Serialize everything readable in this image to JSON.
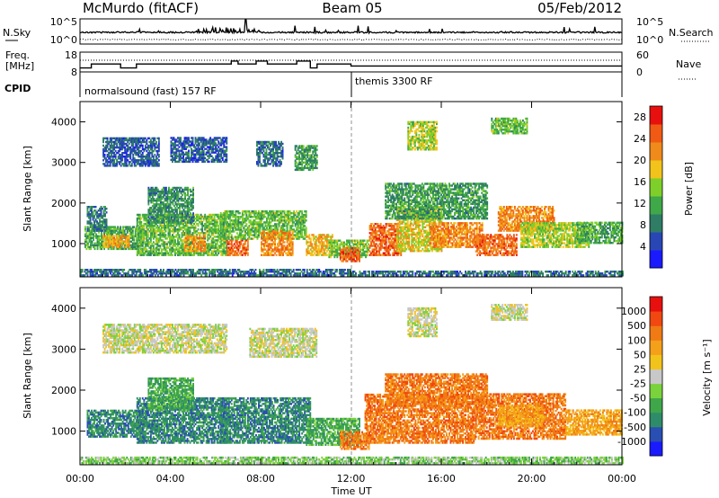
{
  "header": {
    "station": "McMurdo (fitACF)",
    "beam": "Beam 05",
    "date": "05/Feb/2012"
  },
  "top_panels": {
    "nsky_label": "N.Sky",
    "nsky_ticks": [
      "10^5",
      "10^0"
    ],
    "nsearch_label": "N.Search",
    "nsearch_ticks": [
      "10^5",
      "10^0"
    ],
    "freq_label": [
      "Freq.",
      "[MHz]"
    ],
    "freq_ticks": [
      "18",
      "8"
    ],
    "nave_label": "Nave",
    "nave_ticks": [
      "60",
      "0"
    ],
    "cpid_label": "CPID",
    "cpid_segments": [
      {
        "label": "normalsound (fast) 157 RF",
        "start_hour": 0
      },
      {
        "label": "themis 3300 RF",
        "start_hour": 12
      }
    ],
    "freq_profile": [
      [
        0,
        10
      ],
      [
        0.5,
        10
      ],
      [
        0.5,
        12
      ],
      [
        1.8,
        12
      ],
      [
        1.8,
        10
      ],
      [
        2.5,
        10
      ],
      [
        2.5,
        12
      ],
      [
        6.7,
        12
      ],
      [
        6.7,
        13.5
      ],
      [
        7,
        13.5
      ],
      [
        7,
        12
      ],
      [
        7.8,
        12
      ],
      [
        7.8,
        13.5
      ],
      [
        8.3,
        13.5
      ],
      [
        8.3,
        12
      ],
      [
        9.6,
        12
      ],
      [
        9.6,
        13.5
      ],
      [
        10.2,
        13.5
      ],
      [
        10.2,
        10
      ],
      [
        10.5,
        10
      ],
      [
        10.5,
        12
      ],
      [
        12,
        12
      ],
      [
        12,
        11
      ],
      [
        24,
        11
      ]
    ]
  },
  "chart_data": [
    {
      "type": "heatmap",
      "title": "",
      "quantity": "Power",
      "colorbar_label": "Power [dB]",
      "colorbar_ticks": [
        4,
        8,
        12,
        16,
        20,
        24,
        28
      ],
      "colorbar_range": [
        0,
        30
      ],
      "colorbar_colors": [
        "#1a1aff",
        "#2847b4",
        "#2e7d64",
        "#3fa848",
        "#7fcf2a",
        "#f2c31a",
        "#f08a1a",
        "#f05a14",
        "#e8100f"
      ],
      "xlabel": "",
      "ylabel": "Slant Range [km]",
      "xlim": [
        0,
        24
      ],
      "ylim": [
        180,
        4500
      ],
      "y_ticks": [
        1000,
        2000,
        3000,
        4000
      ],
      "x_ticks": [
        "00:00",
        "04:00",
        "08:00",
        "12:00",
        "16:00",
        "20:00",
        "00:00"
      ],
      "regions": [
        {
          "t0": 0.0,
          "t1": 12.0,
          "r0": 200,
          "r1": 350,
          "value": 6
        },
        {
          "t0": 12.0,
          "t1": 24.0,
          "r0": 200,
          "r1": 330,
          "value": 6
        },
        {
          "t0": 0.2,
          "t1": 2.8,
          "r0": 850,
          "r1": 1400,
          "value": 11
        },
        {
          "t0": 0.3,
          "t1": 1.2,
          "r0": 1300,
          "r1": 1900,
          "value": 7
        },
        {
          "t0": 1.0,
          "t1": 2.2,
          "r0": 900,
          "r1": 1200,
          "value": 21
        },
        {
          "t0": 2.5,
          "t1": 6.5,
          "r0": 700,
          "r1": 1700,
          "value": 13
        },
        {
          "t0": 3.0,
          "t1": 5.0,
          "r0": 1500,
          "r1": 2400,
          "value": 9
        },
        {
          "t0": 4.6,
          "t1": 5.5,
          "r0": 800,
          "r1": 1200,
          "value": 22
        },
        {
          "t0": 6.5,
          "t1": 7.4,
          "r0": 700,
          "r1": 1100,
          "value": 25
        },
        {
          "t0": 6.2,
          "t1": 10.0,
          "r0": 1100,
          "r1": 1800,
          "value": 13
        },
        {
          "t0": 8.0,
          "t1": 9.4,
          "r0": 700,
          "r1": 1300,
          "value": 23
        },
        {
          "t0": 10.0,
          "t1": 11.2,
          "r0": 700,
          "r1": 1200,
          "value": 20
        },
        {
          "t0": 11.0,
          "t1": 12.8,
          "r0": 650,
          "r1": 1100,
          "value": 14
        },
        {
          "t0": 11.5,
          "t1": 12.4,
          "r0": 550,
          "r1": 900,
          "value": 26
        },
        {
          "t0": 12.8,
          "t1": 14.2,
          "r0": 700,
          "r1": 1500,
          "value": 25
        },
        {
          "t0": 14.0,
          "t1": 16.0,
          "r0": 800,
          "r1": 1900,
          "value": 18
        },
        {
          "t0": 15.5,
          "t1": 17.8,
          "r0": 900,
          "r1": 1500,
          "value": 23
        },
        {
          "t0": 17.5,
          "t1": 19.3,
          "r0": 700,
          "r1": 1200,
          "value": 25
        },
        {
          "t0": 18.5,
          "t1": 21.0,
          "r0": 1300,
          "r1": 1900,
          "value": 23
        },
        {
          "t0": 19.5,
          "t1": 22.5,
          "r0": 900,
          "r1": 1500,
          "value": 16
        },
        {
          "t0": 22.0,
          "t1": 24.0,
          "r0": 1000,
          "r1": 1500,
          "value": 11
        },
        {
          "t0": 13.5,
          "t1": 18.0,
          "r0": 1600,
          "r1": 2500,
          "value": 10
        },
        {
          "t0": 1.0,
          "t1": 3.5,
          "r0": 2900,
          "r1": 3600,
          "value": 5
        },
        {
          "t0": 4.0,
          "t1": 6.5,
          "r0": 3000,
          "r1": 3600,
          "value": 5
        },
        {
          "t0": 7.8,
          "t1": 9.0,
          "r0": 2900,
          "r1": 3500,
          "value": 6
        },
        {
          "t0": 9.5,
          "t1": 10.5,
          "r0": 2800,
          "r1": 3400,
          "value": 10
        },
        {
          "t0": 14.5,
          "t1": 15.8,
          "r0": 3300,
          "r1": 4000,
          "value": 16
        },
        {
          "t0": 18.2,
          "t1": 19.8,
          "r0": 3700,
          "r1": 4100,
          "value": 13
        }
      ]
    },
    {
      "type": "heatmap",
      "title": "",
      "quantity": "Velocity",
      "colorbar_label": "Velocity [m s⁻¹]",
      "colorbar_ticks": [
        "1000",
        "500",
        "100",
        "50",
        "25",
        "-25",
        "-50",
        "-100",
        "-500",
        "-1000"
      ],
      "colorbar_colors": [
        "#1a1aff",
        "#2a4fb2",
        "#2e8c6a",
        "#3fa64a",
        "#7ad23c",
        "#c8c8c8",
        "#f2c31a",
        "#f5a01a",
        "#f07a14",
        "#f04810",
        "#e8100f"
      ],
      "xlabel": "Time UT",
      "ylabel": "Slant Range [km]",
      "xlim": [
        0,
        24
      ],
      "ylim": [
        180,
        4500
      ],
      "y_ticks": [
        1000,
        2000,
        3000,
        4000
      ],
      "x_ticks": [
        "00:00",
        "04:00",
        "08:00",
        "12:00",
        "16:00",
        "20:00",
        "00:00"
      ],
      "regions": [
        {
          "t0": 0.0,
          "t1": 24.0,
          "r0": 200,
          "r1": 340,
          "value": 4
        },
        {
          "t0": 0.3,
          "t1": 2.8,
          "r0": 850,
          "r1": 1500,
          "value": 2
        },
        {
          "t0": 2.5,
          "t1": 6.5,
          "r0": 700,
          "r1": 1800,
          "value": 2
        },
        {
          "t0": 3.0,
          "t1": 5.0,
          "r0": 1500,
          "r1": 2300,
          "value": 3
        },
        {
          "t0": 6.2,
          "t1": 10.2,
          "r0": 700,
          "r1": 1800,
          "value": 2
        },
        {
          "t0": 10.0,
          "t1": 12.4,
          "r0": 650,
          "r1": 1300,
          "value": 3
        },
        {
          "t0": 11.5,
          "t1": 12.8,
          "r0": 550,
          "r1": 1000,
          "value": 8
        },
        {
          "t0": 12.6,
          "t1": 17.5,
          "r0": 700,
          "r1": 1900,
          "value": 8
        },
        {
          "t0": 13.5,
          "t1": 18.0,
          "r0": 1600,
          "r1": 2400,
          "value": 8
        },
        {
          "t0": 17.5,
          "t1": 21.5,
          "r0": 800,
          "r1": 1900,
          "value": 8
        },
        {
          "t0": 18.5,
          "t1": 20.5,
          "r0": 1100,
          "r1": 1600,
          "value": 7
        },
        {
          "t0": 21.5,
          "t1": 24.0,
          "r0": 900,
          "r1": 1500,
          "value": 7
        },
        {
          "t0": 1.0,
          "t1": 6.5,
          "r0": 2900,
          "r1": 3600,
          "value": 5
        },
        {
          "t0": 7.5,
          "t1": 10.5,
          "r0": 2800,
          "r1": 3500,
          "value": 5
        },
        {
          "t0": 14.5,
          "t1": 15.8,
          "r0": 3300,
          "r1": 4000,
          "value": 5
        },
        {
          "t0": 18.2,
          "t1": 19.8,
          "r0": 3700,
          "r1": 4100,
          "value": 5
        }
      ]
    }
  ]
}
